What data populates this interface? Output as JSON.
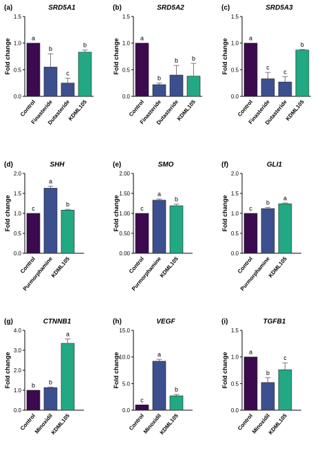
{
  "colors": {
    "Control": "#3b0a4f",
    "Finasteride": "#3c4f8f",
    "Dutasteride": "#3c4f8f",
    "Purmorphamine": "#3c4f8f",
    "Minoxidil": "#3c4f8f",
    "KDML105": "#23a884"
  },
  "chart_data": [
    {
      "type": "bar",
      "panel": "(a)",
      "title": "SRD5A1",
      "ylabel": "Fold change",
      "categories": [
        "Control",
        "Finasteride",
        "Dutasteride",
        "KDML105"
      ],
      "values": [
        1.0,
        0.55,
        0.25,
        0.83
      ],
      "errors": [
        0.0,
        0.25,
        0.09,
        0.04
      ],
      "significance": [
        "a",
        "b",
        "c",
        "b"
      ],
      "ylim": [
        0,
        1.5
      ],
      "yticks": [
        0,
        0.5,
        1.0,
        1.5
      ],
      "ytick_labels": [
        "0.0",
        "0.5",
        "1.0",
        "1.5"
      ]
    },
    {
      "type": "bar",
      "panel": "(b)",
      "title": "SRD5A2",
      "ylabel": "Fold change",
      "categories": [
        "Control",
        "Finasteride",
        "Dutasteride",
        "KDML105"
      ],
      "values": [
        1.0,
        0.22,
        0.4,
        0.38
      ],
      "errors": [
        0.0,
        0.03,
        0.18,
        0.24
      ],
      "significance": [
        "a",
        "b",
        "b",
        "b"
      ],
      "ylim": [
        0,
        1.5
      ],
      "yticks": [
        0,
        0.5,
        1.0,
        1.5
      ],
      "ytick_labels": [
        "0.0",
        "0.5",
        "1.0",
        "1.5"
      ]
    },
    {
      "type": "bar",
      "panel": "(c)",
      "title": "SRD5A3",
      "ylabel": "Fold change",
      "categories": [
        "Control",
        "Finasteride",
        "Dutasteride",
        "KDML105"
      ],
      "values": [
        1.0,
        0.33,
        0.27,
        0.87
      ],
      "errors": [
        0.0,
        0.12,
        0.1,
        0.01
      ],
      "significance": [
        "a",
        "c",
        "c",
        "b"
      ],
      "ylim": [
        0,
        1.5
      ],
      "yticks": [
        0,
        0.5,
        1.0,
        1.5
      ],
      "ytick_labels": [
        "0.0",
        "0.5",
        "1.0",
        "1.5"
      ]
    },
    {
      "type": "bar",
      "panel": "(d)",
      "title": "SHH",
      "ylabel": "Fold change",
      "categories": [
        "Control",
        "Purmorphamine",
        "KDML105"
      ],
      "values": [
        1.0,
        1.63,
        1.08
      ],
      "errors": [
        0.0,
        0.05,
        0.02
      ],
      "significance": [
        "c",
        "a",
        "b"
      ],
      "ylim": [
        0,
        2.0
      ],
      "yticks": [
        0,
        0.5,
        1.0,
        1.5,
        2.0
      ],
      "ytick_labels": [
        "0.0",
        "0.5",
        "1.0",
        "1.5",
        "2.0"
      ]
    },
    {
      "type": "bar",
      "panel": "(e)",
      "title": "SMO",
      "ylabel": "Fold change",
      "categories": [
        "Control",
        "Purmorphamine",
        "KDML105"
      ],
      "values": [
        1.0,
        1.33,
        1.19
      ],
      "errors": [
        0.0,
        0.03,
        0.04
      ],
      "significance": [
        "c",
        "a",
        "b"
      ],
      "ylim": [
        0,
        2.0
      ],
      "yticks": [
        0,
        0.5,
        1.0,
        1.5,
        2.0
      ],
      "ytick_labels": [
        "0.00",
        "0.50",
        "1.00",
        "1.50",
        "2.00"
      ]
    },
    {
      "type": "bar",
      "panel": "(f)",
      "title": "GLI1",
      "ylabel": "Fold change",
      "categories": [
        "Control",
        "Purmorphamine",
        "KDML105"
      ],
      "values": [
        1.0,
        1.12,
        1.24
      ],
      "errors": [
        0.0,
        0.03,
        0.02
      ],
      "significance": [
        "c",
        "b",
        "a"
      ],
      "ylim": [
        0,
        2.0
      ],
      "yticks": [
        0,
        0.5,
        1.0,
        1.5,
        2.0
      ],
      "ytick_labels": [
        "0.0",
        "0.5",
        "1.0",
        "1.5",
        "2.0"
      ]
    },
    {
      "type": "bar",
      "panel": "(g)",
      "title": "CTNNB1",
      "ylabel": "Fold change",
      "categories": [
        "Control",
        "Minoxidil",
        "KDML105"
      ],
      "values": [
        1.0,
        1.13,
        3.35
      ],
      "errors": [
        0.0,
        0.03,
        0.22
      ],
      "significance": [
        "b",
        "b",
        "a"
      ],
      "ylim": [
        0,
        4.0
      ],
      "yticks": [
        0,
        1.0,
        2.0,
        3.0,
        4.0
      ],
      "ytick_labels": [
        "0.0",
        "1.0",
        "2.0",
        "3.0",
        "4.0"
      ]
    },
    {
      "type": "bar",
      "panel": "(h)",
      "title": "VEGF",
      "ylabel": "Fold change",
      "categories": [
        "Control",
        "Minoxidil",
        "KDML105"
      ],
      "values": [
        1.0,
        9.2,
        2.7
      ],
      "errors": [
        0.0,
        0.35,
        0.25
      ],
      "significance": [
        "c",
        "a",
        "b"
      ],
      "ylim": [
        0,
        15.0
      ],
      "yticks": [
        0,
        5.0,
        10.0,
        15.0
      ],
      "ytick_labels": [
        "0.0",
        "5.0",
        "10.0",
        "15.0"
      ]
    },
    {
      "type": "bar",
      "panel": "(i)",
      "title": "TGFB1",
      "ylabel": "Fold change",
      "categories": [
        "Control",
        "Minoxidil",
        "KDML105"
      ],
      "values": [
        1.0,
        0.52,
        0.76
      ],
      "errors": [
        0.0,
        0.09,
        0.13
      ],
      "significance": [
        "a",
        "b",
        "c"
      ],
      "ylim": [
        0,
        1.5
      ],
      "yticks": [
        0,
        0.5,
        1.0,
        1.5
      ],
      "ytick_labels": [
        "0.0",
        "0.5",
        "1.0",
        "1.5"
      ]
    }
  ]
}
